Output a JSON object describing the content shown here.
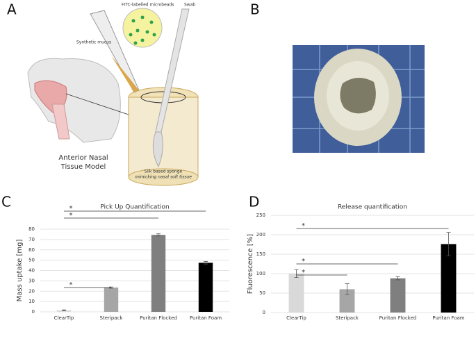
{
  "panels": {
    "a": "A",
    "b": "B",
    "c": "C",
    "d": "D"
  },
  "illustration": {
    "beads": "FITC-labelled microbeads",
    "swab": "Swab",
    "mucus": "Synthetic mucus",
    "model_line1": "Anterior Nasal",
    "model_line2": "Tissue Model",
    "sponge_line1": "Silk based sponge",
    "sponge_line2": "mimicking nasal soft tissue"
  },
  "chart_data": [
    {
      "type": "bar",
      "title": "Pick Up Quantification",
      "y_label": "Mass uptake [mg]",
      "categories": [
        "ClearTip",
        "Steripack",
        "Puritan Flocked",
        "Puritan Foam"
      ],
      "values": [
        1.5,
        23.5,
        74.5,
        47.5
      ],
      "errors": [
        0.4,
        0.6,
        1,
        1.2
      ],
      "colors": [
        "#d9d9d9",
        "#a6a6a6",
        "#7f7f7f",
        "#000000"
      ],
      "ylim": [
        0,
        80
      ],
      "yticks": [
        0,
        10,
        20,
        30,
        40,
        50,
        60,
        70,
        80
      ],
      "grid": true,
      "significance": [
        {
          "from": 0,
          "to": 3,
          "label": "*"
        },
        {
          "from": 0,
          "to": 2,
          "label": "*"
        },
        {
          "from": 0,
          "to": 1,
          "label": "*"
        }
      ]
    },
    {
      "type": "bar",
      "title": "Release quantification",
      "y_label": "Fluorescence [%]",
      "categories": [
        "ClearTip",
        "Steripack",
        "Puritan Flocked",
        "Puritan Foam"
      ],
      "values": [
        100,
        60,
        88,
        176
      ],
      "errors": [
        10,
        14,
        4,
        30
      ],
      "colors": [
        "#d9d9d9",
        "#a6a6a6",
        "#7f7f7f",
        "#000000"
      ],
      "ylim": [
        0,
        250
      ],
      "yticks": [
        0,
        50,
        100,
        150,
        200,
        250
      ],
      "grid": true,
      "significance": [
        {
          "from": 0,
          "to": 3,
          "label": "*"
        },
        {
          "from": 0,
          "to": 2,
          "label": "*"
        },
        {
          "from": 0,
          "to": 1,
          "label": "*"
        }
      ]
    }
  ]
}
